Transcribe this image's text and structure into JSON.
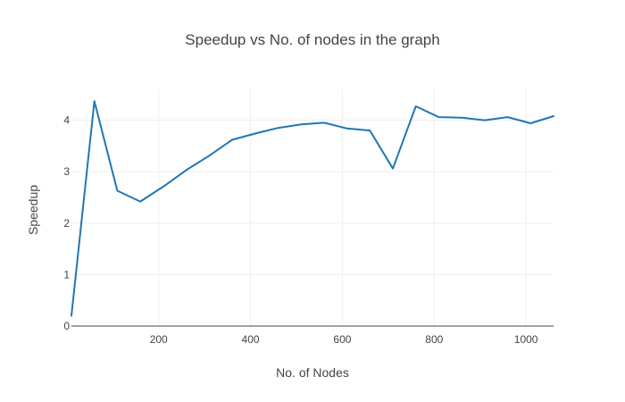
{
  "chart_data": {
    "type": "line",
    "title": "Speedup vs No. of nodes in the graph",
    "xlabel": "No. of Nodes",
    "ylabel": "Speedup",
    "xlim": [
      10,
      1060
    ],
    "ylim": [
      0,
      4.6
    ],
    "x_ticks": [
      200,
      400,
      600,
      800,
      1000
    ],
    "y_ticks": [
      0,
      1,
      2,
      3,
      4
    ],
    "grid": true,
    "legend": "none",
    "series": [
      {
        "color": "#1f77b4",
        "x": [
          10,
          60,
          110,
          160,
          210,
          260,
          310,
          360,
          410,
          460,
          510,
          560,
          610,
          660,
          710,
          760,
          810,
          860,
          910,
          960,
          1010,
          1060
        ],
        "y": [
          0.2,
          4.37,
          2.63,
          2.42,
          2.71,
          3.03,
          3.31,
          3.62,
          3.74,
          3.85,
          3.92,
          3.95,
          3.84,
          3.8,
          3.06,
          4.27,
          4.06,
          4.05,
          4.0,
          4.06,
          3.94,
          4.08
        ]
      }
    ]
  }
}
